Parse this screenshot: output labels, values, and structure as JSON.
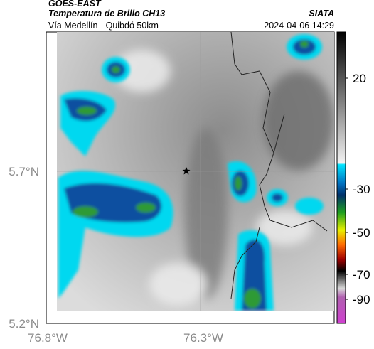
{
  "header": {
    "source": "GOES-EAST",
    "title": "Temperatura de Brillo CH13",
    "credit": "SIATA",
    "route": "Vía Medellín - Quibdó 50km",
    "timestamp": "2024-04-06 14:29"
  },
  "axes": {
    "latitude_labels": [
      "5.7°N",
      "5.2°N"
    ],
    "longitude_labels": [
      "76.8°W",
      "76.3°W"
    ]
  },
  "colorbar": {
    "tick_labels": [
      "20",
      "-30",
      "-50",
      "-70",
      "-90"
    ]
  }
}
